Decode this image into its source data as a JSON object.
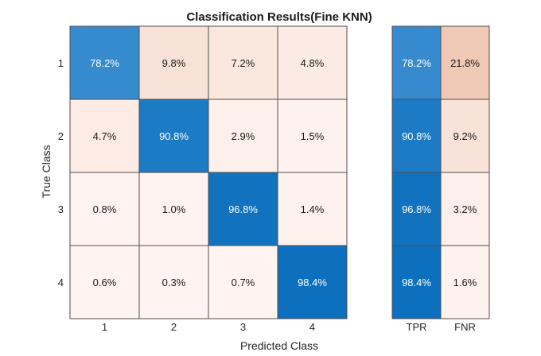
{
  "chart_data": {
    "type": "heatmap",
    "title": "Classification Results(Fine KNN)",
    "xlabel": "Predicted Class",
    "ylabel": "True Class",
    "row_labels": [
      "1",
      "2",
      "3",
      "4"
    ],
    "col_labels": [
      "1",
      "2",
      "3",
      "4"
    ],
    "matrix_unit": "%",
    "matrix": [
      [
        78.2,
        9.8,
        7.2,
        4.8
      ],
      [
        4.7,
        90.8,
        2.9,
        1.5
      ],
      [
        0.8,
        1.0,
        96.8,
        1.4
      ],
      [
        0.6,
        0.3,
        0.7,
        98.4
      ]
    ],
    "summary": {
      "col_labels": [
        "TPR",
        "FNR"
      ],
      "values": [
        [
          78.2,
          21.8
        ],
        [
          90.8,
          9.2
        ],
        [
          96.8,
          3.2
        ],
        [
          98.4,
          1.6
        ]
      ]
    },
    "colors": {
      "correct_high": "#0a6ebd",
      "correct_low": "#3d8fd0",
      "error_high": "#f0c9b3",
      "error_low": "#fff5f2",
      "text_dark": "#1a1a1a",
      "text_light": "#ffffff",
      "grid": "#4d4d4d"
    }
  }
}
